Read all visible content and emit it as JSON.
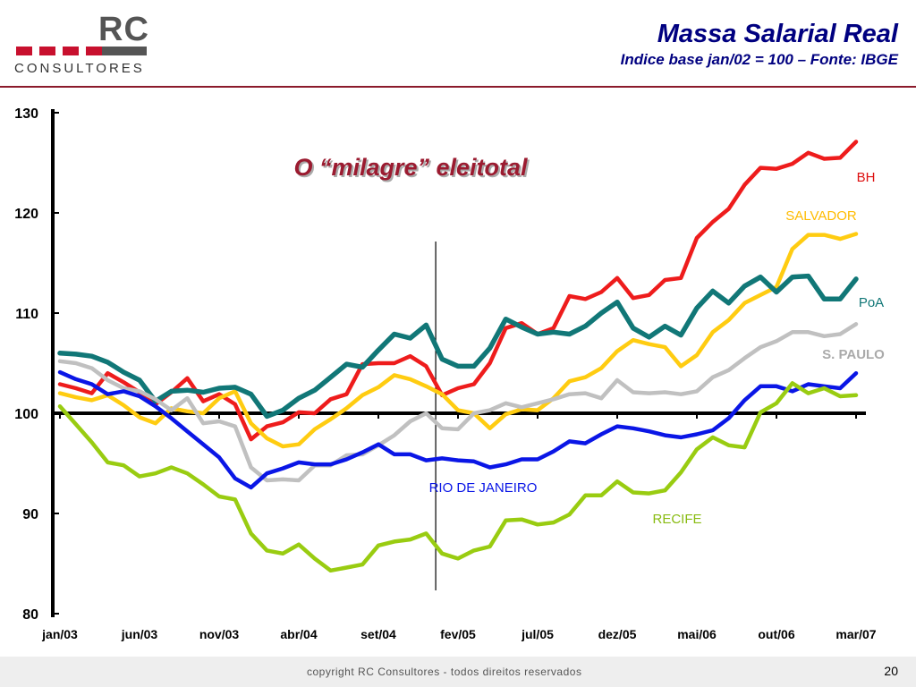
{
  "logo": {
    "text": "RC",
    "subtext": "CONSULTORES",
    "colors": [
      "#c8102e",
      "#c8102e",
      "#c8102e",
      "#c8102e",
      "#555555"
    ]
  },
  "header": {
    "title": "Massa Salarial Real",
    "subtitle": "Indice base jan/02 = 100 – Fonte: IBGE"
  },
  "chart_data": {
    "type": "line",
    "annotation": "O “milagre” eleitotal",
    "ylim": [
      80,
      130
    ],
    "y_ticks": [
      80,
      90,
      100,
      110,
      120,
      130
    ],
    "x_tick_labels": [
      "jan/03",
      "jun/03",
      "nov/03",
      "abr/04",
      "set/04",
      "fev/05",
      "jul/05",
      "dez/05",
      "mai/06",
      "out/06",
      "mar/07"
    ],
    "x_tick_index": [
      0,
      5,
      10,
      15,
      20,
      25,
      30,
      35,
      40,
      45,
      50
    ],
    "vertical_marker_index": 23.6,
    "reference_line": 100,
    "grid": false,
    "series": [
      {
        "name": "BH",
        "color": "#ee1c1c",
        "values": [
          102.9,
          102.5,
          102.0,
          104.0,
          103.1,
          102.1,
          100.9,
          102.1,
          103.5,
          101.2,
          101.9,
          100.9,
          97.4,
          98.7,
          99.1,
          100.1,
          100.0,
          101.4,
          101.9,
          104.9,
          105.0,
          105.0,
          105.7,
          104.7,
          101.8,
          102.5,
          102.9,
          105.0,
          108.5,
          109.0,
          107.9,
          108.5,
          111.7,
          111.4,
          112.1,
          113.5,
          111.5,
          111.8,
          113.3,
          113.5,
          117.5,
          119.1,
          120.4,
          122.8,
          124.5,
          124.4,
          124.9,
          126.0,
          125.4,
          125.5,
          127.1
        ]
      },
      {
        "name": "SALVADOR",
        "color": "#ffcc11",
        "values": [
          102.0,
          101.6,
          101.3,
          101.8,
          100.8,
          99.6,
          99.0,
          100.5,
          100.2,
          100.0,
          101.5,
          102.2,
          99.0,
          97.5,
          96.7,
          96.9,
          98.4,
          99.4,
          100.5,
          101.8,
          102.6,
          103.8,
          103.4,
          102.7,
          101.9,
          100.3,
          100.0,
          98.5,
          99.9,
          100.4,
          100.3,
          101.5,
          103.2,
          103.6,
          104.5,
          106.2,
          107.3,
          106.9,
          106.6,
          104.7,
          105.8,
          108.1,
          109.3,
          111.0,
          111.8,
          112.6,
          116.4,
          117.8,
          117.8,
          117.4,
          117.9
        ]
      },
      {
        "name": "PoA",
        "color": "#117777",
        "values": [
          106.0,
          105.9,
          105.7,
          105.1,
          104.1,
          103.3,
          101.2,
          102.2,
          102.3,
          102.1,
          102.5,
          102.6,
          101.9,
          99.7,
          100.3,
          101.5,
          102.3,
          103.6,
          104.9,
          104.6,
          106.3,
          107.9,
          107.5,
          108.8,
          105.4,
          104.7,
          104.7,
          106.5,
          109.4,
          108.6,
          107.9,
          108.1,
          107.9,
          108.7,
          110.0,
          111.1,
          108.5,
          107.6,
          108.7,
          107.8,
          110.5,
          112.2,
          111.0,
          112.7,
          113.6,
          112.1,
          113.6,
          113.7,
          111.4,
          111.4,
          113.4
        ]
      },
      {
        "name": "S. PAULO",
        "color": "#c0c0c0",
        "values": [
          105.2,
          105.0,
          104.5,
          103.3,
          102.5,
          102.2,
          101.4,
          100.3,
          101.5,
          99.0,
          99.2,
          98.7,
          94.6,
          93.3,
          93.4,
          93.3,
          94.8,
          94.8,
          95.8,
          95.9,
          96.8,
          97.8,
          99.2,
          100.0,
          98.5,
          98.4,
          100.0,
          100.3,
          101.0,
          100.6,
          101.0,
          101.4,
          101.9,
          102.0,
          101.5,
          103.3,
          102.1,
          102.0,
          102.1,
          101.9,
          102.2,
          103.6,
          104.3,
          105.5,
          106.6,
          107.2,
          108.1,
          108.1,
          107.7,
          107.9,
          108.9
        ]
      },
      {
        "name": "RIO DE JANEIRO",
        "color": "#0a16e6",
        "values": [
          104.1,
          103.4,
          102.9,
          101.9,
          102.2,
          101.7,
          100.7,
          99.5,
          98.2,
          96.9,
          95.6,
          93.5,
          92.6,
          94.0,
          94.5,
          95.1,
          94.9,
          94.9,
          95.4,
          96.1,
          96.9,
          95.9,
          95.9,
          95.3,
          95.5,
          95.3,
          95.2,
          94.6,
          94.9,
          95.4,
          95.4,
          96.2,
          97.2,
          97.0,
          97.9,
          98.7,
          98.5,
          98.2,
          97.8,
          97.6,
          97.9,
          98.3,
          99.5,
          101.3,
          102.7,
          102.7,
          102.2,
          102.9,
          102.7,
          102.5,
          104.0
        ]
      },
      {
        "name": "RECIFE",
        "color": "#99cc11",
        "values": [
          100.7,
          98.9,
          97.1,
          95.1,
          94.8,
          93.7,
          94.0,
          94.6,
          94.0,
          92.9,
          91.7,
          91.4,
          88.0,
          86.3,
          86.0,
          86.9,
          85.5,
          84.3,
          84.6,
          84.9,
          86.8,
          87.2,
          87.4,
          88.0,
          86.0,
          85.5,
          86.3,
          86.7,
          89.3,
          89.4,
          88.9,
          89.1,
          89.9,
          91.8,
          91.8,
          93.2,
          92.1,
          92.0,
          92.3,
          94.1,
          96.4,
          97.6,
          96.8,
          96.6,
          100.1,
          101.0,
          103.0,
          102.0,
          102.5,
          101.7,
          101.8
        ]
      }
    ],
    "series_label_colors": {
      "BH": "#dd1111",
      "SALVADOR": "#ffbb00",
      "PoA": "#117777",
      "S. PAULO": "#aaaaaa",
      "RIO DE JANEIRO": "#0a16e6",
      "RECIFE": "#88bb11"
    }
  },
  "footer": {
    "copyright": "copyright RC Consultores - todos direitos reservados",
    "page": "20"
  }
}
